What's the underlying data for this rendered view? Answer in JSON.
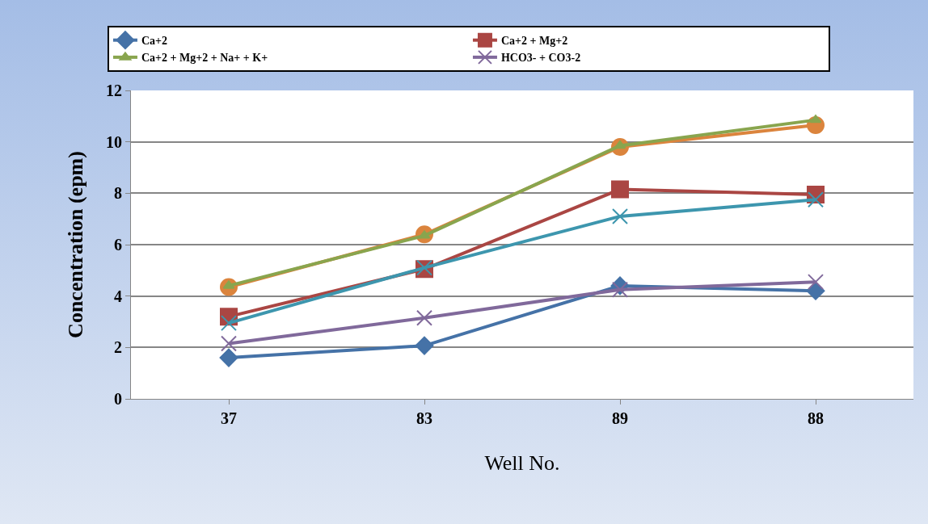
{
  "chart_data": {
    "type": "line",
    "xlabel": "Well No.",
    "ylabel": "Concentration (epm)",
    "categories": [
      "37",
      "83",
      "89",
      "88"
    ],
    "series": [
      {
        "color": "#db843d",
        "marker": "circle",
        "values": [
          4.35,
          6.4,
          9.8,
          10.65
        ]
      },
      {
        "name": "Ca+2",
        "color": "#4572a7",
        "marker": "diamond",
        "values": [
          1.6,
          2.07,
          4.4,
          4.2
        ]
      },
      {
        "name": "Ca+2 + Mg+2",
        "color": "#aa4643",
        "marker": "square",
        "values": [
          3.2,
          5.05,
          8.15,
          7.95
        ]
      },
      {
        "name": "Ca+2 + Mg+2 + Na+ + K+",
        "color": "#89a54e",
        "marker": "triangle",
        "values": [
          4.4,
          6.35,
          9.85,
          10.85
        ]
      },
      {
        "name": "HCO3- + CO3-2",
        "color": "#80699b",
        "marker": "cross",
        "values": [
          2.15,
          3.15,
          4.25,
          4.55
        ]
      },
      {
        "color": "#3d96ae",
        "marker": "cross",
        "values": [
          2.95,
          5.1,
          7.1,
          7.75
        ]
      }
    ],
    "ylim": [
      0,
      12
    ],
    "yticks": [
      0,
      2,
      4,
      6,
      8,
      10,
      12
    ],
    "grid": "y",
    "legend": "top"
  }
}
